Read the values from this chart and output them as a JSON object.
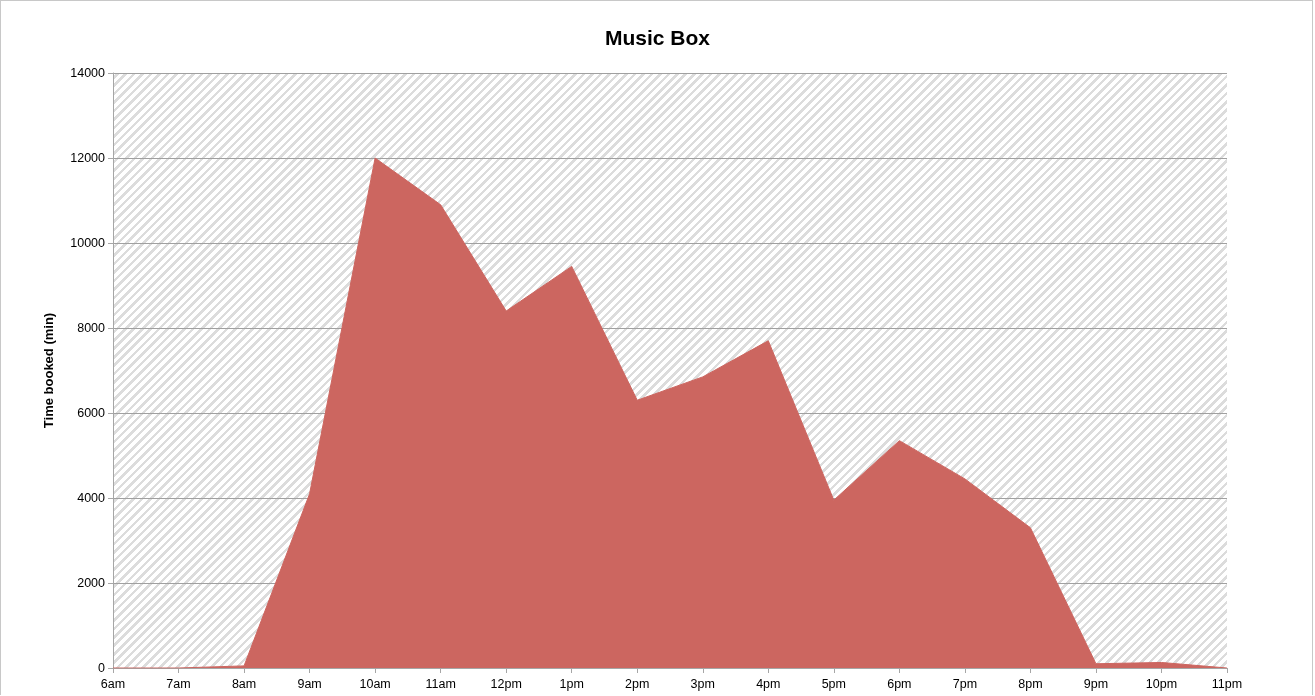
{
  "chart_data": {
    "type": "area",
    "title": "Music Box",
    "ylabel": "Time booked (min)",
    "categories": [
      "6am",
      "7am",
      "8am",
      "9am",
      "10am",
      "11am",
      "12pm",
      "1pm",
      "2pm",
      "3pm",
      "4pm",
      "5pm",
      "6pm",
      "7pm",
      "8pm",
      "9pm",
      "10pm",
      "11pm"
    ],
    "values": [
      0,
      0,
      50,
      4100,
      12000,
      10900,
      8400,
      9450,
      6300,
      6850,
      7700,
      3950,
      5350,
      4450,
      3300,
      100,
      130,
      0
    ],
    "color": "#cc6660",
    "ylim": [
      0,
      14000
    ],
    "yticks": [
      0,
      2000,
      4000,
      6000,
      8000,
      10000,
      12000,
      14000
    ],
    "grid": "y"
  }
}
